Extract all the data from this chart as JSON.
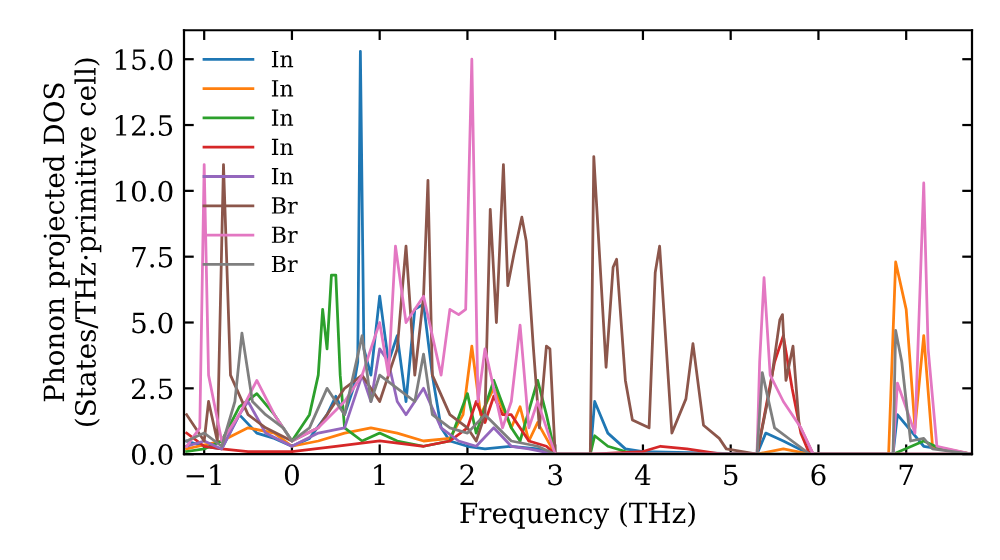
{
  "chart_data": {
    "type": "line",
    "xlabel": "Frequency (THz)",
    "ylabel": "Phonon projected DOS\n(States/THz·primitive cell)",
    "xlim": [
      -1.23,
      7.75
    ],
    "ylim": [
      0,
      16.1
    ],
    "xticks": [
      {
        "value": -1,
        "label": "−1"
      },
      0,
      1,
      2,
      3,
      4,
      5,
      6,
      7
    ],
    "yticks": [
      {
        "value": 0,
        "label": "0.0"
      },
      2.5,
      {
        "value": 5,
        "label": "5.0"
      },
      7.5,
      {
        "value": 10,
        "label": "10.0"
      },
      12.5,
      {
        "value": 15,
        "label": "15.0"
      }
    ],
    "legend": "top left",
    "grid": false,
    "series": [
      {
        "name": "In",
        "color": "#1f77b4",
        "x": [
          -1.2,
          -1.0,
          -0.8,
          -0.6,
          -0.4,
          -0.2,
          0,
          0.2,
          0.4,
          0.5,
          0.6,
          0.7,
          0.75,
          0.78,
          0.82,
          0.9,
          1.0,
          1.1,
          1.2,
          1.3,
          1.4,
          1.5,
          1.6,
          1.7,
          1.8,
          2.0,
          2.2,
          2.5,
          2.8,
          3.0,
          3.4,
          3.45,
          3.6,
          3.8,
          4.0,
          5.3,
          5.4,
          5.6,
          5.9,
          6.85,
          6.9,
          7.2,
          7.75
        ],
        "values": [
          0.5,
          0.3,
          0.2,
          1.5,
          0.8,
          0.6,
          0.3,
          0.6,
          1.5,
          2.2,
          1.5,
          2.5,
          3.5,
          15.3,
          4.0,
          3.0,
          6.0,
          3.5,
          4.5,
          2.0,
          5.5,
          5.7,
          3.0,
          1.0,
          0.5,
          0.3,
          0.2,
          0.3,
          0.2,
          0,
          0,
          2.0,
          0.8,
          0.2,
          0.1,
          0,
          0.8,
          0.5,
          0,
          0,
          1.5,
          0.3,
          0
        ]
      },
      {
        "name": "In",
        "color": "#ff7f0e",
        "x": [
          -1.2,
          -0.8,
          -0.5,
          -0.2,
          0,
          0.3,
          0.6,
          0.9,
          1.2,
          1.5,
          1.8,
          1.95,
          2.05,
          2.15,
          2.3,
          2.5,
          2.6,
          2.7,
          2.8,
          3.0,
          3.4,
          4.0,
          5.3,
          5.6,
          5.9,
          6.8,
          6.88,
          7.0,
          7.1,
          7.2,
          7.3,
          7.75
        ],
        "values": [
          0.2,
          0.5,
          1.0,
          0.8,
          0.3,
          0.5,
          0.8,
          1.0,
          0.8,
          0.5,
          0.6,
          1.5,
          4.1,
          1.5,
          2.5,
          1.0,
          1.8,
          0.5,
          1.2,
          0,
          0,
          0,
          0,
          0.2,
          0,
          0,
          7.3,
          5.5,
          1.0,
          4.5,
          0.3,
          0
        ]
      },
      {
        "name": "In",
        "color": "#2ca02c",
        "x": [
          -1.2,
          -1.0,
          -0.8,
          -0.6,
          -0.4,
          -0.2,
          0,
          0.2,
          0.3,
          0.35,
          0.4,
          0.45,
          0.5,
          0.55,
          0.6,
          0.8,
          1.0,
          1.2,
          1.5,
          1.8,
          2.0,
          2.1,
          2.3,
          2.5,
          2.6,
          2.8,
          2.9,
          3.0,
          3.4,
          3.45,
          3.6,
          3.8,
          4.0,
          6.85,
          7.2,
          7.4,
          7.75
        ],
        "values": [
          0.1,
          0.2,
          0.5,
          1.8,
          2.3,
          1.5,
          0.5,
          1.5,
          3.0,
          5.5,
          4.0,
          6.8,
          6.8,
          3.0,
          1.0,
          0.5,
          0.8,
          0.5,
          0.3,
          0.5,
          2.3,
          0.8,
          2.8,
          1.0,
          0.5,
          2.8,
          1.5,
          0,
          0,
          0.7,
          0.3,
          0.1,
          0,
          0,
          0.5,
          0.2,
          0
        ]
      },
      {
        "name": "In",
        "color": "#d62728",
        "x": [
          -1.2,
          -1.0,
          -0.8,
          -0.5,
          0,
          0.5,
          1.0,
          1.5,
          1.8,
          2.0,
          2.1,
          2.2,
          2.3,
          2.4,
          2.5,
          2.7,
          2.9,
          3.0,
          3.4,
          4.0,
          4.2,
          4.5,
          4.9,
          5.3,
          5.5,
          5.6,
          5.7,
          5.8,
          5.9,
          7.75
        ],
        "values": [
          0.8,
          0.3,
          0.2,
          0.1,
          0.1,
          0.3,
          0.5,
          0.3,
          0.5,
          1.0,
          2.0,
          1.2,
          2.2,
          1.5,
          1.5,
          0.5,
          0.3,
          0,
          0,
          0.1,
          0.3,
          0.2,
          0,
          0,
          3.5,
          4.5,
          2.5,
          0.8,
          0,
          0
        ]
      },
      {
        "name": "In",
        "color": "#9467bd",
        "x": [
          -1.2,
          -1.0,
          -0.8,
          -0.6,
          -0.5,
          -0.3,
          0,
          0.3,
          0.6,
          0.8,
          0.9,
          1.0,
          1.1,
          1.2,
          1.3,
          1.5,
          1.7,
          1.9,
          2.1,
          2.3,
          2.5,
          2.7,
          3.0,
          7.75
        ],
        "values": [
          0.3,
          0.5,
          0.2,
          1.5,
          2.0,
          0.8,
          0.3,
          0.8,
          1.0,
          3.0,
          2.0,
          4.0,
          3.5,
          2.0,
          1.5,
          2.5,
          1.0,
          0.5,
          0.3,
          1.0,
          0.3,
          0.2,
          0,
          0
        ]
      },
      {
        "name": "Br",
        "color": "#8c564b",
        "x": [
          -1.2,
          -1.0,
          -0.95,
          -0.85,
          -0.78,
          -0.7,
          -0.5,
          -0.3,
          0,
          0.3,
          0.6,
          0.8,
          1.0,
          1.2,
          1.3,
          1.4,
          1.5,
          1.55,
          1.6,
          1.8,
          2.0,
          2.1,
          2.2,
          2.26,
          2.33,
          2.41,
          2.46,
          2.53,
          2.62,
          2.67,
          2.75,
          2.82,
          2.9,
          2.94,
          3.0,
          3.4,
          3.44,
          3.58,
          3.66,
          3.7,
          3.8,
          3.88,
          4.07,
          4.14,
          4.19,
          4.33,
          4.49,
          4.57,
          4.69,
          4.87,
          4.95,
          5.3,
          5.45,
          5.56,
          5.59,
          5.63,
          5.71,
          5.78,
          5.94,
          7.75
        ],
        "values": [
          1.5,
          0.5,
          2.0,
          0.5,
          11.0,
          3.0,
          1.5,
          1.0,
          0.5,
          1.0,
          2.5,
          3.0,
          2.0,
          4.0,
          7.9,
          3.0,
          6.0,
          10.4,
          3.0,
          1.5,
          1.0,
          0.5,
          1.5,
          9.3,
          5.0,
          11.0,
          6.4,
          7.6,
          9.0,
          8.1,
          4.1,
          1.0,
          4.1,
          4.0,
          0,
          0,
          11.3,
          3.3,
          7.1,
          7.4,
          2.8,
          1.3,
          1.0,
          6.9,
          7.9,
          0.8,
          2.1,
          4.2,
          1.1,
          0.6,
          0.2,
          0,
          2.5,
          5.1,
          5.3,
          2.8,
          4.1,
          1.1,
          0,
          0
        ]
      },
      {
        "name": "Br",
        "color": "#e377c2",
        "x": [
          -1.2,
          -1.05,
          -1.0,
          -0.95,
          -0.8,
          -0.6,
          -0.4,
          -0.2,
          0,
          0.3,
          0.6,
          0.8,
          1.0,
          1.1,
          1.18,
          1.3,
          1.5,
          1.7,
          1.8,
          1.9,
          1.98,
          2.05,
          2.12,
          2.2,
          2.4,
          2.5,
          2.6,
          2.7,
          2.8,
          3.0,
          5.3,
          5.33,
          5.38,
          5.45,
          5.6,
          5.8,
          5.94,
          6.85,
          6.9,
          7.1,
          7.2,
          7.25,
          7.35,
          7.75
        ],
        "values": [
          0.3,
          1.0,
          11.0,
          3.0,
          0.5,
          1.5,
          2.8,
          1.5,
          0.5,
          1.0,
          2.0,
          3.0,
          5.0,
          3.0,
          7.9,
          5.0,
          6.0,
          3.0,
          5.5,
          5.3,
          5.5,
          15.0,
          2.0,
          4.0,
          1.0,
          2.0,
          4.9,
          1.0,
          2.0,
          0,
          0,
          3.5,
          6.7,
          3.0,
          2.0,
          1.0,
          0,
          0,
          2.7,
          0.8,
          10.3,
          4.0,
          0.3,
          0
        ]
      },
      {
        "name": "Br",
        "color": "#7f7f7f",
        "x": [
          -1.2,
          -1.0,
          -0.8,
          -0.65,
          -0.57,
          -0.45,
          -0.3,
          -0.1,
          0,
          0.2,
          0.4,
          0.6,
          0.7,
          0.8,
          0.9,
          1.0,
          1.2,
          1.4,
          1.5,
          1.6,
          1.8,
          2.0,
          2.2,
          2.5,
          2.8,
          3.0,
          5.3,
          5.36,
          5.4,
          5.5,
          5.7,
          5.9,
          6.85,
          6.88,
          6.95,
          7.05,
          7.2,
          7.3,
          7.75
        ],
        "values": [
          0.5,
          0.8,
          0.3,
          2.0,
          4.6,
          2.0,
          1.5,
          1.0,
          0.5,
          1.0,
          2.5,
          1.5,
          3.0,
          4.5,
          2.0,
          3.0,
          2.5,
          2.0,
          3.8,
          1.5,
          1.0,
          0.8,
          1.5,
          0.5,
          0.3,
          0,
          0,
          3.1,
          2.5,
          1.0,
          0.5,
          0,
          0,
          4.7,
          3.5,
          0.5,
          0.6,
          0.2,
          0
        ]
      }
    ]
  }
}
